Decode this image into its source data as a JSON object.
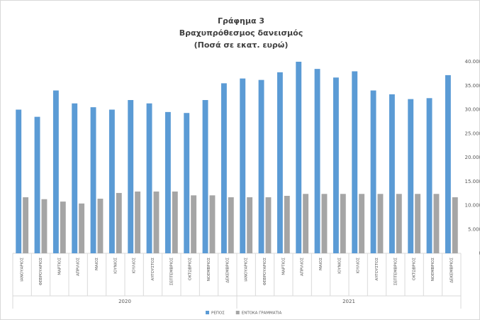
{
  "chart_data": {
    "type": "bar",
    "title": "Γράφημα 3",
    "subtitle": "Βραχυπρόθεσμος δανεισμός",
    "subtitle2": "(Ποσά σε εκατ. ευρώ)",
    "categories": [
      "ΙΑΝΟΥΑΡΙΟΣ",
      "ΦΕΒΡΟΥΑΡΙΟΣ",
      "ΜΑΡΤΙΟΣ",
      "ΑΠΡΙΛΙΟΣ",
      "ΜΑΙΟΣ",
      "ΙΟΥΝΙΟΣ",
      "ΙΟΥΛΙΟΣ",
      "ΑΥΓΟΥΣΤΟΣ",
      "ΣΕΠΤΕΜΒΡΙΟΣ",
      "ΟΚΤΩΒΡΙΟΣ",
      "ΝΟΕΜΒΡΙΟΣ",
      "ΔΕΚΕΜΒΡΙΟΣ",
      "ΙΑΝΟΥΑΡΙΟΣ",
      "ΦΕΒΡΟΥΑΡΙΟΣ",
      "ΜΑΡΤΙΟΣ",
      "ΑΠΡΙΛΙΟΣ",
      "ΜΑΙΟΣ",
      "ΙΟΥΝΙΟΣ",
      "ΙΟΥΛΙΟΣ",
      "ΑΥΓΟΥΣΤΟΣ",
      "ΣΕΠΤΕΜΒΡΙΟΣ",
      "ΟΚΤΩΒΡΙΟΣ",
      "ΝΟΕΜΒΡΙΟΣ",
      "ΔΕΚΕΜΒΡΙΟΣ"
    ],
    "category_groups": [
      "2020",
      "2021"
    ],
    "series": [
      {
        "name": "ΡΕΠΟΣ",
        "color": "#5b9bd5",
        "values": [
          30000,
          28500,
          34000,
          31300,
          30500,
          30000,
          32000,
          31300,
          29500,
          29300,
          32000,
          35500,
          36500,
          36200,
          37800,
          40000,
          38500,
          36700,
          38000,
          34000,
          33200,
          32200,
          32400,
          37200
        ]
      },
      {
        "name": "ΕΝΤΟΚΑ ΓΡΑΜΜΑΤΙΑ",
        "color": "#a5a5a5",
        "values": [
          11700,
          11300,
          10800,
          10400,
          11400,
          12600,
          12900,
          12900,
          12900,
          12100,
          12100,
          11700,
          11700,
          11700,
          12000,
          12400,
          12400,
          12400,
          12400,
          12400,
          12400,
          12400,
          12400,
          11700
        ]
      }
    ],
    "ylim": [
      0,
      40000
    ],
    "yticks": [
      0,
      {
        "value": 5000,
        "label": "5.000"
      },
      {
        "value": 10000,
        "label": "10.000"
      },
      {
        "value": 15000,
        "label": "15.000"
      },
      {
        "value": 20000,
        "label": "20.000"
      },
      {
        "value": 25000,
        "label": "25.000"
      },
      {
        "value": 30000,
        "label": "30.000"
      },
      {
        "value": 35000,
        "label": "35.000"
      },
      {
        "value": 40000,
        "label": "40.000"
      }
    ],
    "grid": false,
    "legend": "bottom"
  }
}
